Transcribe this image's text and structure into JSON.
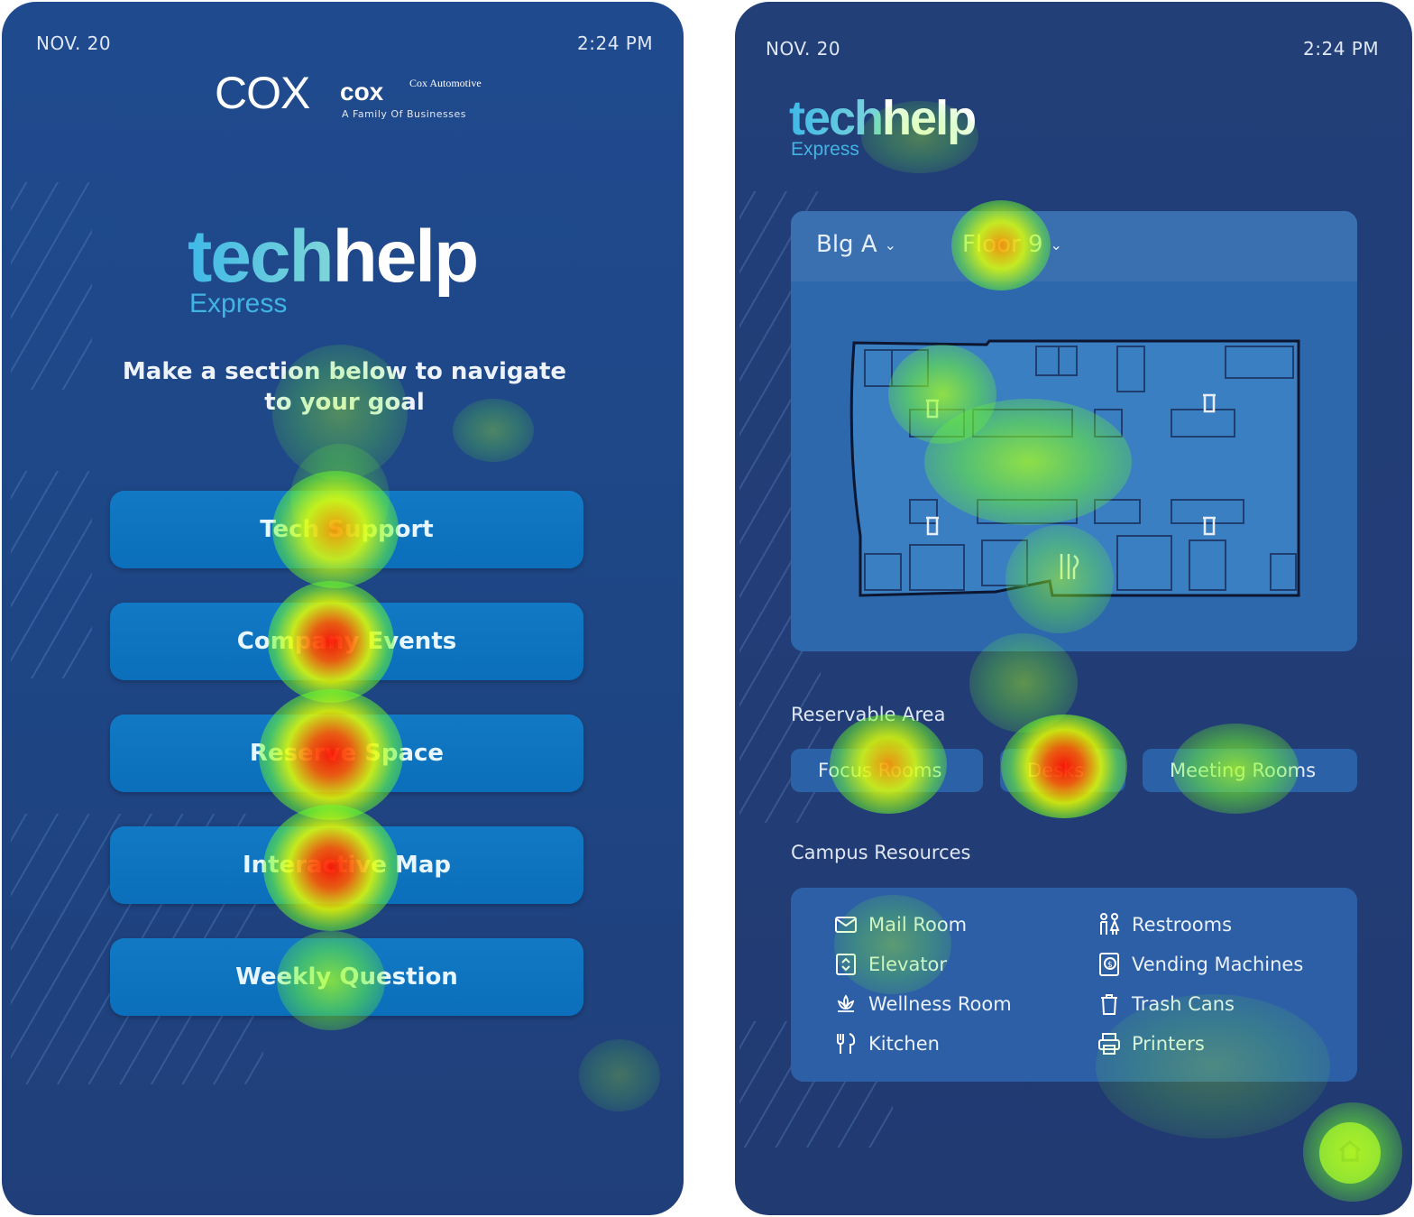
{
  "left_screen": {
    "status": {
      "date": "NOV. 20",
      "time": "2:24 PM"
    },
    "logo": {
      "cox": "COX",
      "cox_small": "cox",
      "cox_automotive": "Cox Automotive",
      "tagline": "A Family Of Businesses"
    },
    "brand": {
      "tech": "tech",
      "help": "help",
      "sub": "Express"
    },
    "instructions": "Make a section below to navigate to your goal",
    "buttons": [
      {
        "label": "Tech Support"
      },
      {
        "label": "Company Events"
      },
      {
        "label": "Reserve Space"
      },
      {
        "label": "Interactive Map"
      },
      {
        "label": "Weekly Question"
      }
    ]
  },
  "right_screen": {
    "status": {
      "date": "NOV. 20",
      "time": "2:24 PM"
    },
    "brand": {
      "tech": "tech",
      "help": "help",
      "sub": "Express"
    },
    "map": {
      "building": "Blg A",
      "floor": "Floor 9"
    },
    "reservable": {
      "label": "Reservable Area",
      "chips": [
        "Focus Rooms",
        "Desks",
        "Meeting Rooms"
      ]
    },
    "campus": {
      "label": "Campus Resources",
      "items": [
        {
          "label": "Mail Room",
          "icon": "mail-icon"
        },
        {
          "label": "Elevator",
          "icon": "elevator-icon"
        },
        {
          "label": "Wellness Room",
          "icon": "lotus-icon"
        },
        {
          "label": "Kitchen",
          "icon": "utensils-icon"
        },
        {
          "label": "Restrooms",
          "icon": "restroom-icon"
        },
        {
          "label": "Vending Machines",
          "icon": "vending-icon"
        },
        {
          "label": "Trash Cans",
          "icon": "trash-icon"
        },
        {
          "label": "Printers",
          "icon": "printer-icon"
        }
      ]
    },
    "home_button": {
      "icon": "home-icon"
    }
  },
  "colors": {
    "background": "#1f4a8e",
    "button": "#0b6fbb",
    "card": "#2d68ad",
    "brand_accent": "#41b4e4",
    "heat_hot": "#ff1400",
    "heat_warm": "#ccff00"
  }
}
